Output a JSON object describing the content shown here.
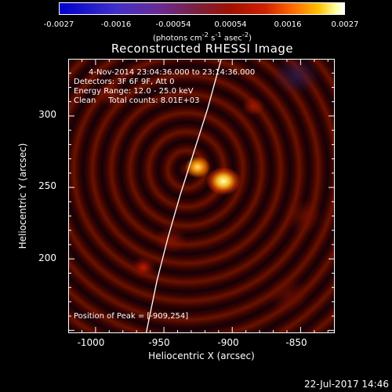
{
  "colorbar": {
    "ticks": [
      "-0.0027",
      "-0.0016",
      "-0.00054",
      "0.00054",
      "0.0016",
      "0.0027"
    ],
    "units_html": "(photons cm<sup>-2</sup> s<sup>-1</sup> asec<sup>-2</sup>)"
  },
  "title": "Reconstructed RHESSI Image",
  "info": {
    "time_range": "4-Nov-2014 23:04:36.000 to 23:14:36.000",
    "detectors": "Detectors: 3F 6F 9F, Att 0",
    "energy": "Energy Range: 12.0 - 25.0 keV",
    "clean": "Clean     Total counts: 8.01E+03"
  },
  "peak_text": "Position of Peak = [-909,254]",
  "timestamp": "22-Jul-2017 14:46",
  "chart_data": {
    "type": "heatmap",
    "title": "Reconstructed RHESSI Image",
    "xlabel": "Heliocentric X (arcsec)",
    "ylabel": "Heliocentric Y (arcsec)",
    "xlim": [
      -1020,
      -825
    ],
    "ylim": [
      148,
      340
    ],
    "x_ticks": [
      "-1000",
      "-950",
      "-900",
      "-850"
    ],
    "x_tick_values": [
      -1000,
      -950,
      -900,
      -850
    ],
    "y_ticks": [
      "200",
      "250",
      "300"
    ],
    "y_tick_values": [
      200,
      250,
      300
    ],
    "colorbar_range": [
      -0.0027,
      0.0027
    ],
    "peak": [
      -909,
      254
    ],
    "limb_points": [
      [
        -963,
        148
      ],
      [
        -955,
        185
      ],
      [
        -947,
        215
      ],
      [
        -938,
        245
      ],
      [
        -928,
        275
      ],
      [
        -918,
        305
      ],
      [
        -908,
        340
      ]
    ]
  }
}
